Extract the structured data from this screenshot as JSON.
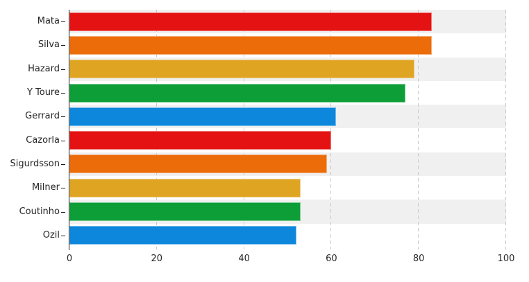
{
  "chart_data": {
    "type": "bar",
    "orientation": "horizontal",
    "title": "",
    "xlabel": "",
    "ylabel": "",
    "legend": "none",
    "grid": "vertical-dashed",
    "categories": [
      "Mata",
      "Silva",
      "Hazard",
      "Y Toure",
      "Gerrard",
      "Cazorla",
      "Sigurdsson",
      "Milner",
      "Coutinho",
      "Ozil"
    ],
    "values": [
      83,
      83,
      79,
      77,
      61,
      60,
      59,
      53,
      53,
      52
    ],
    "bar_colors": [
      "#e41212",
      "#ec6c0a",
      "#dfa522",
      "#0d9e38",
      "#0c87dc",
      "#e41212",
      "#ec6c0a",
      "#dfa522",
      "#0d9e38",
      "#0c87dc"
    ],
    "xlim": [
      0,
      100
    ],
    "x_ticks": [
      "0",
      "20",
      "40",
      "60",
      "80",
      "100"
    ],
    "colors": {
      "band": "#f0f0f0",
      "gridline": "#c9c9c9",
      "axis_line": "#1a1a1a",
      "tick_mark": "#1a1a1a",
      "tick_label": "#262626",
      "background": "#ffffff"
    }
  }
}
